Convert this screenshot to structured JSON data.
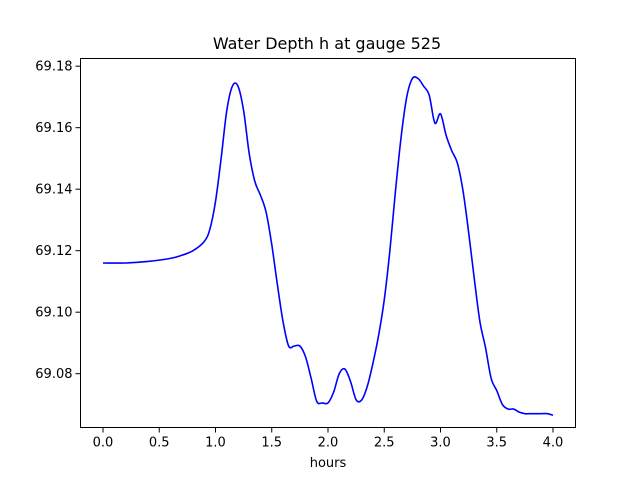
{
  "chart_data": {
    "type": "line",
    "title": "Water Depth h at gauge 525",
    "xlabel": "hours",
    "ylabel": "",
    "xlim": [
      -0.2,
      4.2
    ],
    "ylim": [
      69.0625,
      69.1825
    ],
    "xticks": [
      0.0,
      0.5,
      1.0,
      1.5,
      2.0,
      2.5,
      3.0,
      3.5,
      4.0
    ],
    "xtick_labels": [
      "0.0",
      "0.5",
      "1.0",
      "1.5",
      "2.0",
      "2.5",
      "3.0",
      "3.5",
      "4.0"
    ],
    "yticks": [
      69.08,
      69.1,
      69.12,
      69.14,
      69.16,
      69.18
    ],
    "ytick_labels": [
      "69.08",
      "69.10",
      "69.12",
      "69.14",
      "69.16",
      "69.18"
    ],
    "grid": false,
    "series": [
      {
        "color": "#0000ff",
        "x": [
          0.0,
          0.2,
          0.4,
          0.6,
          0.7,
          0.8,
          0.9,
          0.95,
          1.0,
          1.05,
          1.1,
          1.15,
          1.2,
          1.25,
          1.3,
          1.35,
          1.4,
          1.45,
          1.5,
          1.55,
          1.6,
          1.65,
          1.7,
          1.75,
          1.8,
          1.85,
          1.9,
          1.95,
          2.0,
          2.05,
          2.1,
          2.15,
          2.2,
          2.25,
          2.3,
          2.35,
          2.4,
          2.45,
          2.5,
          2.55,
          2.6,
          2.65,
          2.7,
          2.75,
          2.8,
          2.85,
          2.9,
          2.95,
          3.0,
          3.05,
          3.1,
          3.15,
          3.2,
          3.25,
          3.3,
          3.35,
          3.4,
          3.45,
          3.5,
          3.55,
          3.6,
          3.65,
          3.7,
          3.75,
          3.8,
          3.85,
          3.9,
          3.95,
          4.0
        ],
        "y": [
          69.116,
          69.116,
          69.1165,
          69.1175,
          69.1185,
          69.12,
          69.123,
          69.127,
          69.136,
          69.15,
          69.1655,
          69.1735,
          69.1735,
          69.1655,
          69.1515,
          69.1425,
          69.138,
          69.1325,
          69.122,
          69.109,
          69.097,
          69.089,
          69.089,
          69.089,
          69.0855,
          69.0785,
          69.071,
          69.0705,
          69.0705,
          69.074,
          69.08,
          69.0815,
          69.0775,
          69.0715,
          69.0715,
          69.076,
          69.0835,
          69.0925,
          69.104,
          69.12,
          69.1395,
          69.157,
          69.17,
          69.176,
          69.176,
          69.1735,
          69.1705,
          69.1615,
          69.1645,
          69.1575,
          69.1525,
          69.1485,
          69.1395,
          69.126,
          69.111,
          69.097,
          69.0885,
          69.0785,
          69.0745,
          69.07,
          69.0685,
          69.0685,
          69.0675,
          69.067,
          69.067,
          69.067,
          69.067,
          69.067,
          69.0665
        ]
      }
    ]
  }
}
